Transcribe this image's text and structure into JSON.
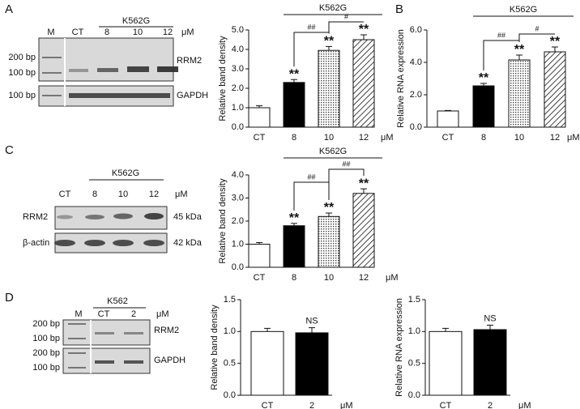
{
  "panels": [
    "A",
    "B",
    "C",
    "D"
  ],
  "gels": [
    {
      "lanes": [
        "M",
        "CT",
        "8",
        "10",
        "12"
      ],
      "group": "K562G",
      "unit": "μM",
      "markers": [
        "200 bp",
        "100 bp",
        "100 bp"
      ],
      "genes": [
        "RRM2",
        "GAPDH"
      ]
    },
    {
      "lanes": [
        "CT",
        "8",
        "10",
        "12"
      ],
      "group": "K562G",
      "unit": "μM",
      "genes": [
        "RRM2",
        "β-actin"
      ],
      "sizes": [
        "45 kDa",
        "42 kDa"
      ]
    },
    {
      "lanes": [
        "M",
        "CT",
        "2"
      ],
      "group": "K562",
      "unit": "μM",
      "markers": [
        "200 bp",
        "100 bp",
        "200 bp",
        "100 bp"
      ],
      "genes": [
        "RRM2",
        "GAPDH"
      ]
    }
  ],
  "chart_data": [
    {
      "type": "bar",
      "ylabel": "Relative band density",
      "unit": "μM",
      "categories": [
        "CT",
        "8",
        "10",
        "12"
      ],
      "values": [
        1.0,
        2.3,
        3.95,
        4.5
      ],
      "errors": [
        0.1,
        0.15,
        0.2,
        0.25
      ],
      "fills": [
        "white",
        "black",
        "dots",
        "hatch"
      ],
      "ylim": [
        0,
        5
      ],
      "yticks": [
        {
          "value": 0,
          "label": "0.0"
        },
        {
          "value": 1,
          "label": "1.0"
        },
        {
          "value": 2,
          "label": "2.0"
        },
        {
          "value": 3,
          "label": "3.0"
        },
        {
          "value": 4,
          "label": "4.0"
        },
        {
          "value": 5,
          "label": "5.0"
        }
      ],
      "group": {
        "text": "K562G",
        "from": 1,
        "to": 3
      },
      "marks": [
        {
          "text": "**",
          "bar": 1
        },
        {
          "text": "**",
          "bar": 2
        },
        {
          "text": "**",
          "bar": 3
        }
      ],
      "brackets": [
        {
          "text": "##",
          "from": 1,
          "to": 2
        },
        {
          "text": "#",
          "from": 2,
          "to": 3
        }
      ]
    },
    {
      "type": "bar",
      "ylabel": "Relative RNA expression",
      "unit": "μM",
      "categories": [
        "CT",
        "8",
        "10",
        "12"
      ],
      "values": [
        1.0,
        2.55,
        4.15,
        4.65
      ],
      "errors": [
        0.03,
        0.15,
        0.3,
        0.3
      ],
      "fills": [
        "white",
        "black",
        "dots",
        "hatch"
      ],
      "ylim": [
        0,
        6
      ],
      "yticks": [
        {
          "value": 0,
          "label": "0.0"
        },
        {
          "value": 2,
          "label": "2.0"
        },
        {
          "value": 4,
          "label": "4.0"
        },
        {
          "value": 6,
          "label": "6.0"
        }
      ],
      "group": {
        "text": "K562G",
        "from": 1,
        "to": 3
      },
      "marks": [
        {
          "text": "**",
          "bar": 1
        },
        {
          "text": "**",
          "bar": 2
        },
        {
          "text": "**",
          "bar": 3
        }
      ],
      "brackets": [
        {
          "text": "##",
          "from": 1,
          "to": 2
        },
        {
          "text": "#",
          "from": 2,
          "to": 3
        }
      ]
    },
    {
      "type": "bar",
      "ylabel": "Relative band density",
      "unit": "μM",
      "categories": [
        "CT",
        "8",
        "10",
        "12"
      ],
      "values": [
        1.0,
        1.8,
        2.2,
        3.2
      ],
      "errors": [
        0.07,
        0.1,
        0.15,
        0.2
      ],
      "fills": [
        "white",
        "black",
        "dots",
        "hatch"
      ],
      "ylim": [
        0,
        4
      ],
      "yticks": [
        {
          "value": 0,
          "label": "0.0"
        },
        {
          "value": 1,
          "label": "1.0"
        },
        {
          "value": 2,
          "label": "2.0"
        },
        {
          "value": 3,
          "label": "3.0"
        },
        {
          "value": 4,
          "label": "4.0"
        }
      ],
      "group": {
        "text": "K562G",
        "from": 1,
        "to": 3
      },
      "marks": [
        {
          "text": "**",
          "bar": 1
        },
        {
          "text": "**",
          "bar": 2
        },
        {
          "text": "**",
          "bar": 3
        }
      ],
      "brackets": [
        {
          "text": "##",
          "from": 1,
          "to": 2
        },
        {
          "text": "##",
          "from": 2,
          "to": 3
        }
      ]
    },
    {
      "type": "bar",
      "ylabel": "Relative band density",
      "unit": "μM",
      "categories": [
        "CT",
        "2"
      ],
      "values": [
        1.0,
        0.98
      ],
      "errors": [
        0.05,
        0.08
      ],
      "fills": [
        "white",
        "black"
      ],
      "ylim": [
        0,
        1.5
      ],
      "yticks": [
        {
          "value": 0,
          "label": "0.0"
        },
        0.5,
        {
          "value": 1,
          "label": "1.0"
        },
        1.5
      ],
      "marks": [
        {
          "text": "NS",
          "bar": 1
        }
      ]
    },
    {
      "type": "bar",
      "ylabel": "Relative RNA expression",
      "unit": "μM",
      "categories": [
        "CT",
        "2"
      ],
      "values": [
        1.0,
        1.03
      ],
      "errors": [
        0.05,
        0.07
      ],
      "fills": [
        "white",
        "black"
      ],
      "ylim": [
        0,
        1.5
      ],
      "yticks": [
        {
          "value": 0,
          "label": "0.0"
        },
        0.5,
        {
          "value": 1,
          "label": "1.0"
        },
        1.5
      ],
      "marks": [
        {
          "text": "NS",
          "bar": 1
        }
      ]
    }
  ]
}
